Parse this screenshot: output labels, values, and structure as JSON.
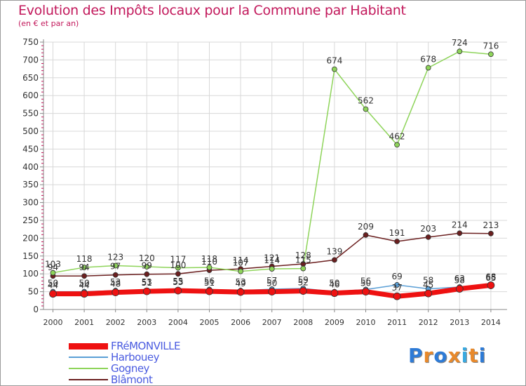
{
  "header": {
    "title": "Evolution des Impôts locaux pour la Commune par Habitant",
    "subtitle": "(en € et par an)"
  },
  "brand": {
    "text": "Proxiti",
    "colors": [
      "#2e7bd6",
      "#e8892b",
      "#2e7bd6",
      "#e8892b",
      "#3aa9e0",
      "#e8892b",
      "#2e7bd6"
    ]
  },
  "chart_data": {
    "type": "line",
    "x": [
      2000,
      2001,
      2002,
      2003,
      2004,
      2005,
      2006,
      2007,
      2008,
      2009,
      2010,
      2011,
      2012,
      2013,
      2014
    ],
    "ylim": [
      0,
      750
    ],
    "yticks": [
      0,
      50,
      100,
      150,
      200,
      250,
      300,
      350,
      400,
      450,
      500,
      550,
      600,
      650,
      700,
      750
    ],
    "grid": true,
    "legend_position": "bottom-left",
    "series": [
      {
        "name": "FRéMONVILLE",
        "color": "#ee1111",
        "width": 7,
        "values": [
          44,
          44,
          48,
          51,
          53,
          51,
          49,
          50,
          52,
          46,
          50,
          37,
          45,
          58,
          68
        ]
      },
      {
        "name": "Harbouey",
        "color": "#5a9fd6",
        "width": 1.5,
        "values": [
          50,
          50,
          53,
          53,
          55,
          56,
          53,
          57,
          59,
          50,
          56,
          69,
          58,
          63,
          65
        ]
      },
      {
        "name": "Gogney",
        "color": "#8ed45a",
        "width": 1.5,
        "values": [
          103,
          118,
          123,
          120,
          117,
          118,
          107,
          114,
          115,
          674,
          562,
          462,
          678,
          724,
          716
        ]
      },
      {
        "name": "Blâmont",
        "color": "#6b1f1f",
        "width": 1.5,
        "values": [
          94,
          94,
          97,
          99,
          100,
          110,
          114,
          121,
          128,
          139,
          209,
          191,
          203,
          214,
          213
        ]
      }
    ]
  }
}
